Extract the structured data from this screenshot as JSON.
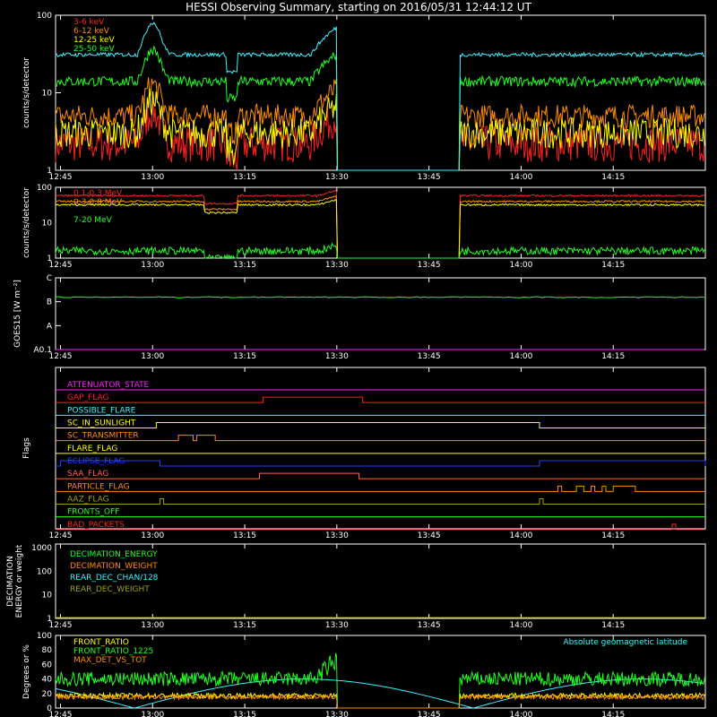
{
  "title": "HESSI Observing Summary, starting on 2016/05/31 12:44:12 UT",
  "time_ticks": [
    "12:45",
    "13:00",
    "13:15",
    "13:30",
    "13:45",
    "14:00",
    "14:15"
  ],
  "colors": {
    "red": "#ff2020",
    "orange": "#ff8c00",
    "yellow": "#ffff00",
    "green": "#20ff20",
    "cyan": "#40f0ff",
    "blue": "#2040ff",
    "magenta": "#ff20ff",
    "olive": "#a0a000",
    "pink": "#ff6040",
    "white": "#ffffff"
  },
  "chart_data": [
    {
      "type": "line",
      "name": "low-energy",
      "ylabel": "counts/s/detector",
      "log": true,
      "ylim": [
        1,
        100
      ],
      "yticks": [
        "1",
        "10",
        "100"
      ],
      "series": [
        {
          "name": "3-6 keV",
          "color": "red",
          "base": 2.2,
          "noise": 0.55
        },
        {
          "name": "6-12 keV",
          "color": "orange",
          "base": 5.0,
          "noise": 0.35
        },
        {
          "name": "12-25 keV",
          "color": "yellow",
          "base": 3.0,
          "noise": 0.45
        },
        {
          "name": "25-50 keV",
          "color": "green",
          "base": 14,
          "noise": 0.15
        },
        {
          "name": "",
          "color": "cyan",
          "base": 31,
          "noise": 0.06
        }
      ]
    },
    {
      "type": "line",
      "name": "high-energy",
      "ylabel": "counts/s/detector",
      "log": true,
      "ylim": [
        1,
        100
      ],
      "yticks": [
        "1",
        "10",
        "100"
      ],
      "series": [
        {
          "name": "0.1-0.3 MeV",
          "color": "red",
          "base": 58,
          "noise": 0.06
        },
        {
          "name": "0.3-0.8 MeV",
          "color": "orange",
          "base": 40,
          "noise": 0.06
        },
        {
          "name": "",
          "color": "yellow",
          "base": 32,
          "noise": 0.06
        },
        {
          "name": "7-20 MeV",
          "color": "green",
          "base": 1.6,
          "noise": 0.25
        }
      ]
    },
    {
      "type": "line",
      "name": "goes",
      "ylabel": "GOES15 [W m⁻²]",
      "yticks": [
        "A0.1",
        "A",
        "B",
        "C"
      ],
      "series": [
        {
          "name": "",
          "color": "green",
          "level": 0.73
        },
        {
          "name": "",
          "color": "magenta",
          "level": 0.0
        }
      ]
    },
    {
      "type": "line",
      "name": "flags",
      "ylabel": "Flags",
      "flags": [
        {
          "name": "ATTENUATOR_STATE",
          "color": "magenta",
          "on": []
        },
        {
          "name": "GAP_FLAG",
          "color": "red",
          "on": [
            [
              13.3,
              13.57
            ]
          ]
        },
        {
          "name": "POSSIBLE_FLARE",
          "color": "cyan",
          "on": []
        },
        {
          "name": "SC_IN_SUNLIGHT",
          "color": "yellow",
          "on": [
            [
              13.01,
              14.05
            ]
          ]
        },
        {
          "name": "SC_TRANSMITTER",
          "color": "orange",
          "on": [
            [
              13.07,
              13.11
            ],
            [
              13.12,
              13.17
            ]
          ]
        },
        {
          "name": "FLARE_FLAG",
          "color": "yellow",
          "on": []
        },
        {
          "name": "ECLIPSE_FLAG",
          "color": "blue",
          "on": [
            [
              12.75,
              13.02
            ],
            [
              14.05,
              14.5
            ]
          ]
        },
        {
          "name": "SAA_FLAG",
          "color": "pink",
          "on": [
            [
              13.29,
              13.56
            ]
          ]
        },
        {
          "name": "PARTICLE_FLAG",
          "color": "orange",
          "on": [
            [
              14.1,
              14.11
            ],
            [
              14.15,
              14.17
            ],
            [
              14.19,
              14.2
            ],
            [
              14.22,
              14.23
            ],
            [
              14.25,
              14.31
            ]
          ]
        },
        {
          "name": "AAZ_FLAG",
          "color": "olive",
          "on": [
            [
              13.02,
              13.03
            ],
            [
              14.05,
              14.06
            ]
          ]
        },
        {
          "name": "FRONTS_OFF",
          "color": "green",
          "on": []
        },
        {
          "name": "BAD_PACKETS",
          "color": "red",
          "on": [
            [
              14.41,
              14.42
            ]
          ]
        }
      ]
    },
    {
      "type": "line",
      "name": "decimation",
      "ylabel": "DECIMATION ENERGY or weight",
      "yticks": [
        "1",
        "10",
        "100",
        "1000"
      ],
      "series": [
        {
          "name": "DECIMATION_ENERGY",
          "color": "green"
        },
        {
          "name": "DECIMATION_WEIGHT",
          "color": "orange"
        },
        {
          "name": "REAR_DEC_CHAN/128",
          "color": "cyan"
        },
        {
          "name": "REAR_DEC_WEIGHT",
          "color": "olive"
        }
      ]
    },
    {
      "type": "line",
      "name": "ratios",
      "ylabel": "Degrees or %",
      "yticks": [
        "0",
        "20",
        "40",
        "60",
        "80",
        "100"
      ],
      "annotation": "Absolute geomagnetic latitude",
      "series": [
        {
          "name": "FRONT_RATIO",
          "color": "yellow",
          "base": 17,
          "noise": 0.2
        },
        {
          "name": "FRONT_RATIO_1225",
          "color": "green",
          "base": 40,
          "noise": 0.25
        },
        {
          "name": "MAX_DET_VS_TOT",
          "color": "orange",
          "base": 15,
          "noise": 0.2
        }
      ]
    }
  ]
}
